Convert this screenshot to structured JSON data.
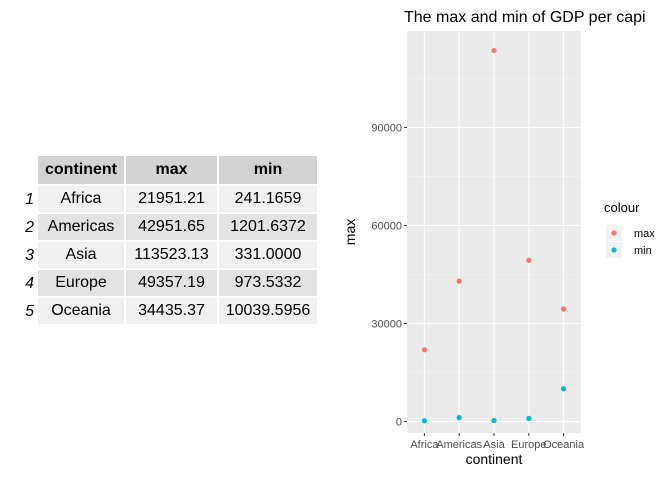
{
  "table": {
    "headers": [
      "continent",
      "max",
      "min"
    ],
    "rows": [
      {
        "index": "1",
        "continent": "Africa",
        "max": "21951.21",
        "min": "241.1659"
      },
      {
        "index": "2",
        "continent": "Americas",
        "max": "42951.65",
        "min": "1201.6372"
      },
      {
        "index": "3",
        "continent": "Asia",
        "max": "113523.13",
        "min": "331.0000"
      },
      {
        "index": "4",
        "continent": "Europe",
        "max": "49357.19",
        "min": "973.5332"
      },
      {
        "index": "5",
        "continent": "Oceania",
        "max": "34435.37",
        "min": "10039.5956"
      }
    ]
  },
  "chart_data": {
    "type": "scatter",
    "title": "The max and min of GDP per capi",
    "xlabel": "continent",
    "ylabel": "max",
    "categories": [
      "Africa",
      "Americas",
      "Asia",
      "Europe",
      "Oceania"
    ],
    "series": [
      {
        "name": "max",
        "color": "#F8766D",
        "values": [
          21951.21,
          42951.65,
          113523.13,
          49357.19,
          34435.37
        ]
      },
      {
        "name": "min",
        "color": "#00BFC4",
        "values": [
          241.1659,
          1201.6372,
          331.0,
          973.5332,
          10039.5956
        ]
      }
    ],
    "ylim": [
      -3500,
      119500
    ],
    "yticks": [
      0,
      30000,
      60000,
      90000
    ],
    "ytick_labels": [
      "0",
      "30000",
      "60000",
      "90000"
    ],
    "grid": true,
    "legend": {
      "title": "colour",
      "placement": "right"
    }
  },
  "colors": {
    "panel_bg": "#EBEBEB",
    "grid_major": "#FFFFFF",
    "grid_minor": "#F5F5F5"
  }
}
